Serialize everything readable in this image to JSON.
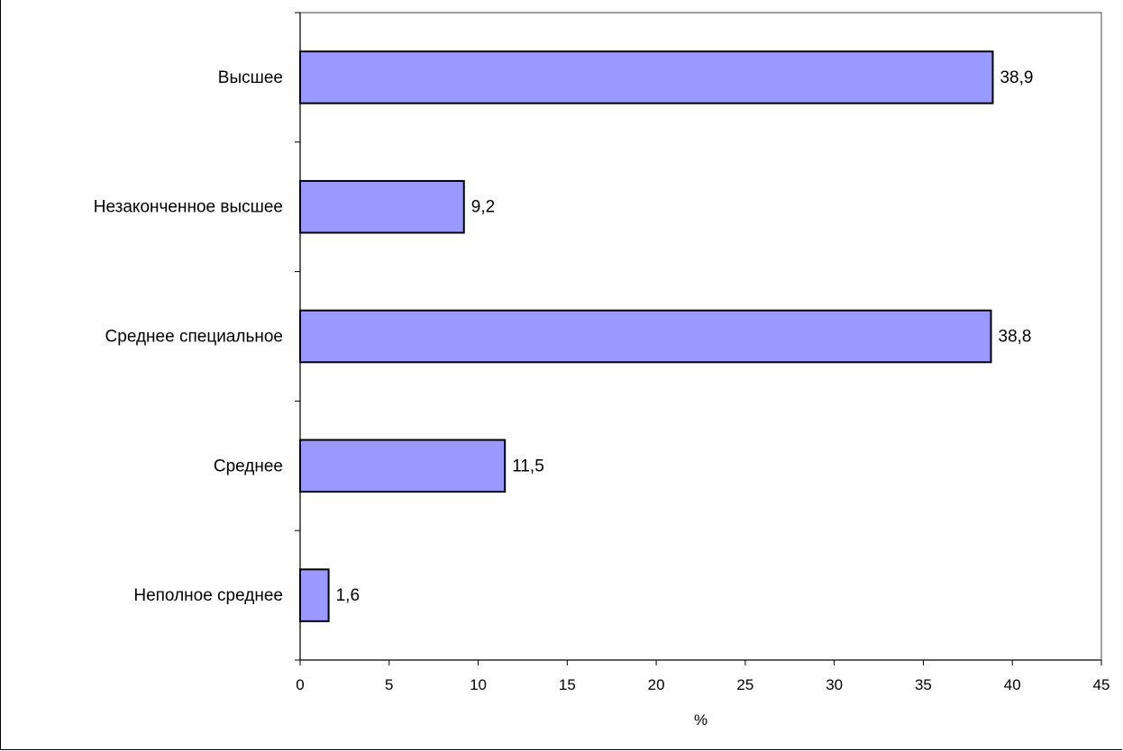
{
  "chart_data": {
    "type": "bar",
    "orientation": "horizontal",
    "categories": [
      "Высшее",
      "Незаконченное высшее",
      "Среднее специальное",
      "Среднее",
      "Неполное среднее"
    ],
    "values": [
      38.9,
      9.2,
      38.8,
      11.5,
      1.6
    ],
    "value_labels": [
      "38,9",
      "9,2",
      "38,8",
      "11,5",
      "1,6"
    ],
    "xlabel": "%",
    "xlim": [
      0,
      45
    ],
    "xticks": [
      0,
      5,
      10,
      15,
      20,
      25,
      30,
      35,
      40,
      45
    ],
    "grid": false,
    "legend": "none",
    "bar_color": "#9999ff",
    "bar_border_color": "#000000",
    "plot_border_color": "#808080"
  }
}
